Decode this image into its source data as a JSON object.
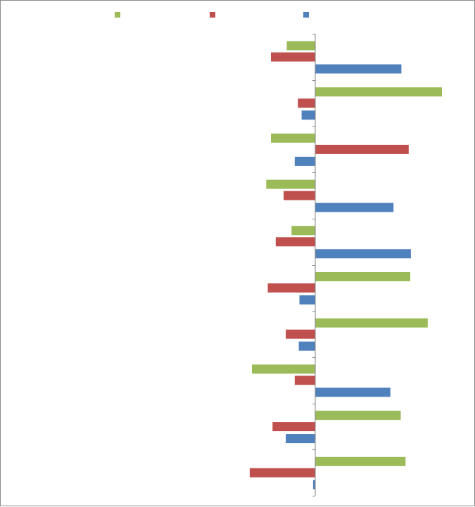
{
  "chart_data": {
    "type": "bar",
    "orientation": "horizontal",
    "title": "",
    "xlabel": "",
    "ylabel": "",
    "categories": [
      "",
      "",
      "",
      "",
      "",
      "",
      "",
      "",
      "",
      ""
    ],
    "series": [
      {
        "color": "#9BBB59",
        "values": [
          -0.9,
          4.0,
          -1.4,
          -1.55,
          -0.75,
          3.0,
          3.55,
          -2.0,
          2.7,
          2.85
        ]
      },
      {
        "color": "#C0504D",
        "values": [
          -1.4,
          -0.55,
          2.95,
          -1.0,
          -1.25,
          -1.5,
          -0.93,
          -0.65,
          -1.35,
          -2.07
        ]
      },
      {
        "color": "#4F81BD",
        "values": [
          2.72,
          -0.43,
          -0.65,
          2.47,
          3.02,
          -0.5,
          -0.52,
          2.37,
          -0.93,
          -0.07
        ]
      }
    ],
    "xlim": [
      -10,
      5
    ],
    "legend": "top",
    "grid": false
  }
}
